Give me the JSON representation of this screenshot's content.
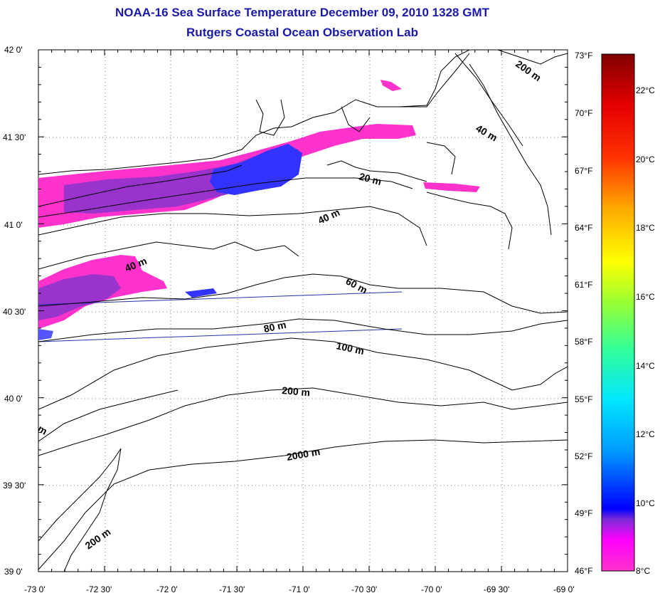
{
  "title": "NOAA-16 Sea Surface Temperature December 09, 2010 1328 GMT",
  "subtitle": "Rutgers Coastal Ocean Observation Lab",
  "axes": {
    "lat_ticks": [
      "42 0'",
      "41 30'",
      "41 0'",
      "40 30'",
      "40 0'",
      "39 30'",
      "39 0'"
    ],
    "lon_ticks": [
      "-73 0'",
      "-72 30'",
      "-72 0'",
      "-71 30'",
      "-71 0'",
      "-70 30'",
      "-70 0'",
      "-69 30'",
      "-69 0'"
    ]
  },
  "contour_labels": [
    "200 m",
    "40 m",
    "20 m",
    "40 m",
    "40 m",
    "60 m",
    "80 m",
    "100 m",
    "200 m",
    "2000 m",
    "200 m",
    "m"
  ],
  "colorbar": {
    "fahrenheit": [
      "73°F",
      "70°F",
      "67°F",
      "64°F",
      "61°F",
      "58°F",
      "55°F",
      "52°F",
      "49°F",
      "46°F"
    ],
    "celsius": [
      "22°C",
      "20°C",
      "18°C",
      "16°C",
      "14°C",
      "12°C",
      "10°C",
      "8°C"
    ]
  },
  "colors": {
    "title": "#1a1aa6",
    "sst_pink": "#ff33cc",
    "sst_purple": "#9933cc",
    "sst_blue": "#3333ff",
    "track_line": "#2233aa"
  }
}
